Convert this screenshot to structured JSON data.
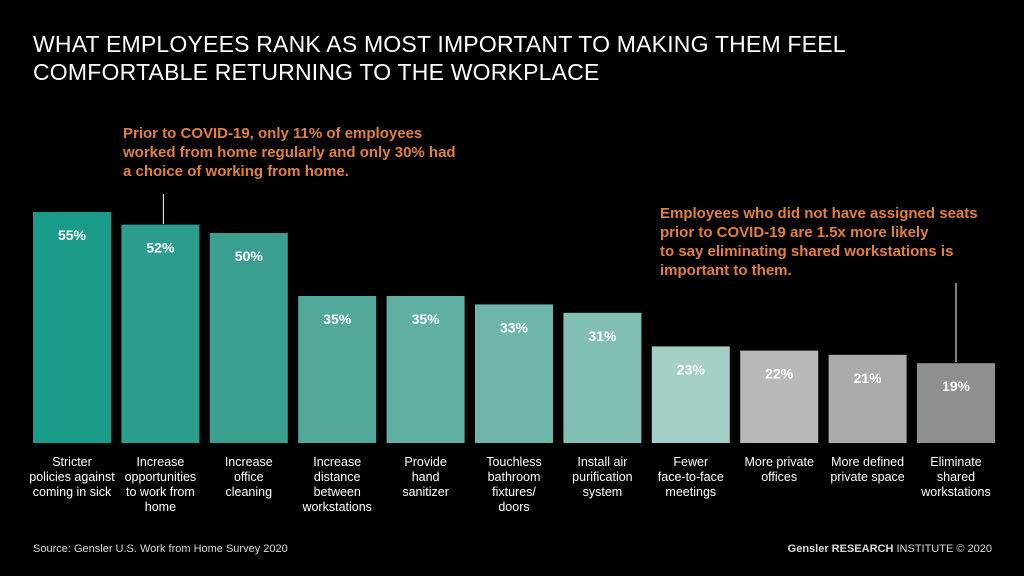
{
  "title": {
    "line1": "WHAT EMPLOYEES RANK AS MOST IMPORTANT TO MAKING THEM FEEL",
    "line2": "COMFORTABLE RETURNING TO THE WORKPLACE"
  },
  "annotations": {
    "left": [
      "Prior to COVID-19, only 11% of employees",
      "worked from home regularly and only 30% had",
      "a choice of working from home."
    ],
    "right": [
      "Employees who did not have assigned seats",
      "prior to COVID-19 are 1.5x more likely",
      "to say eliminating shared workstations is",
      "important to them."
    ]
  },
  "chart_data": {
    "type": "bar",
    "categories": [
      [
        "Stricter",
        "policies against",
        "coming in sick"
      ],
      [
        "Increase",
        "opportunities",
        "to work from",
        "home"
      ],
      [
        "Increase",
        "office",
        "cleaning"
      ],
      [
        "Increase",
        "distance",
        "between",
        "workstations"
      ],
      [
        "Provide",
        "hand",
        "sanitizer"
      ],
      [
        "Touchless",
        "bathroom",
        "fixtures/",
        "doors"
      ],
      [
        "Install air",
        "purification",
        "system"
      ],
      [
        "Fewer",
        "face-to-face",
        "meetings"
      ],
      [
        "More private",
        "offices"
      ],
      [
        "More defined",
        "private space"
      ],
      [
        "Eliminate",
        "shared",
        "workstations"
      ]
    ],
    "values": [
      55,
      52,
      50,
      35,
      35,
      33,
      31,
      23,
      22,
      21,
      19
    ],
    "value_labels": [
      "55%",
      "52%",
      "50%",
      "35%",
      "35%",
      "33%",
      "31%",
      "23%",
      "22%",
      "21%",
      "19%"
    ],
    "colors": [
      "#1a9a88",
      "#2d9e8e",
      "#3a9f8f",
      "#51a89a",
      "#5fb0a2",
      "#6fb6aa",
      "#81bfb3",
      "#a4d0c8",
      "#b7b9b9",
      "#aaacac",
      "#8e9090"
    ],
    "label_colors": [
      "#ffffff",
      "#ffffff",
      "#ffffff",
      "#ffffff",
      "#ffffff",
      "#ffffff",
      "#ffffff",
      "#ffffff",
      "#ffffff",
      "#ffffff",
      "#ffffff"
    ],
    "ylim": [
      0,
      60
    ],
    "grid": false,
    "xlabel": "",
    "ylabel": ""
  },
  "footer": {
    "source": "Source: Gensler U.S. Work from Home Survey 2020",
    "brand_bold": "Gensler RESEARCH",
    "brand_rest": " INSTITUTE © 2020"
  }
}
